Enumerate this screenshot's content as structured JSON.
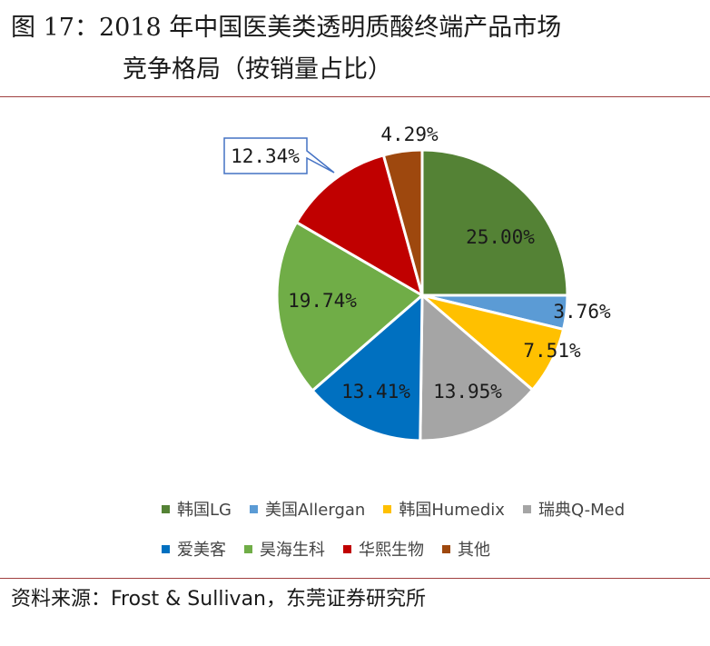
{
  "title": {
    "line1": "图 17：2018 年中国医美类透明质酸终端产品市场",
    "line2": "竞争格局（按销量占比）"
  },
  "source": "资料来源：Frost & Sullivan，东莞证券研究所",
  "chart_data": {
    "type": "pie",
    "title": "",
    "slices": [
      {
        "name": "韩国LG",
        "value": 25.0,
        "label": "25.00%",
        "color": "#548235"
      },
      {
        "name": "美国Allergan",
        "value": 3.76,
        "label": "3.76%",
        "color": "#5B9BD5"
      },
      {
        "name": "韩国Humedix",
        "value": 7.51,
        "label": "7.51%",
        "color": "#FFC000"
      },
      {
        "name": "瑞典Q-Med",
        "value": 13.95,
        "label": "13.95%",
        "color": "#A5A5A5"
      },
      {
        "name": "爱美客",
        "value": 13.41,
        "label": "13.41%",
        "color": "#0070C0"
      },
      {
        "name": "昊海生科",
        "value": 19.74,
        "label": "19.74%",
        "color": "#70AD47"
      },
      {
        "name": "华熙生物",
        "value": 12.34,
        "label": "12.34%",
        "color": "#C00000"
      },
      {
        "name": "其他",
        "value": 4.29,
        "label": "4.29%",
        "color": "#9E480E"
      }
    ],
    "legend_position": "bottom"
  }
}
